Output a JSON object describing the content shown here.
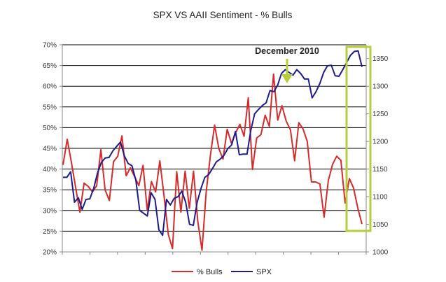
{
  "chart_data": {
    "type": "line",
    "title": "SPX VS AAII Sentiment - % Bulls",
    "xlabel": "",
    "ylabel_left": "",
    "ylabel_right": "",
    "y_left_ticks": [
      "20%",
      "25%",
      "30%",
      "35%",
      "40%",
      "45%",
      "50%",
      "55%",
      "60%",
      "65%",
      "70%"
    ],
    "y_left_range": [
      20,
      70
    ],
    "y_right_ticks": [
      "1000",
      "1050",
      "1100",
      "1150",
      "1200",
      "1250",
      "1300",
      "1350"
    ],
    "y_right_range": [
      1000,
      1375
    ],
    "grid": true,
    "legend_position": "bottom",
    "series": [
      {
        "name": "% Bulls",
        "axis": "left",
        "color": "#d62b2b",
        "values": [
          41.0,
          47.2,
          41.6,
          35.6,
          29.6,
          36.6,
          35.8,
          34.5,
          36.0,
          44.7,
          35.0,
          32.4,
          41.8,
          43.1,
          48.0,
          38.4,
          40.3,
          38.2,
          36.0,
          40.9,
          30.0,
          37.0,
          34.5,
          42.0,
          33.5,
          24.2,
          20.8,
          39.4,
          29.6,
          39.5,
          30.5,
          39.5,
          27.4,
          20.4,
          34.5,
          43.3,
          50.6,
          45.0,
          42.4,
          49.6,
          46.2,
          48.8,
          50.8,
          47.9,
          57.2,
          39.9,
          47.5,
          48.3,
          53.0,
          50.3,
          62.9,
          51.8,
          55.3,
          51.6,
          49.5,
          42.0,
          51.2,
          49.7,
          46.7,
          36.9,
          36.9,
          36.4,
          28.4,
          37.2,
          41.1,
          43.1,
          42.1,
          31.8,
          37.7,
          35.4,
          30.6,
          26.7
        ]
      },
      {
        "name": "SPX",
        "axis": "right",
        "color": "#1c1c8c",
        "values": [
          1135,
          1135,
          1145,
          1090,
          1098,
          1077,
          1095,
          1096,
          1115,
          1143,
          1162,
          1170,
          1171,
          1183,
          1191,
          1199,
          1174,
          1160,
          1156,
          1130,
          1075,
          1070,
          1065,
          1107,
          1095,
          1040,
          1030,
          1095,
          1085,
          1097,
          1100,
          1110,
          1090,
          1050,
          1048,
          1090,
          1115,
          1135,
          1140,
          1151,
          1163,
          1168,
          1175,
          1187,
          1194,
          1218,
          1176,
          1177,
          1177,
          1220,
          1250,
          1258,
          1265,
          1270,
          1292,
          1290,
          1302,
          1323,
          1330,
          1325,
          1320,
          1330,
          1323,
          1313,
          1313,
          1279,
          1290,
          1305,
          1325,
          1337,
          1338,
          1319,
          1318,
          1330,
          1343,
          1356,
          1363,
          1364,
          1335
        ]
      }
    ],
    "annotations": [
      {
        "text": "December 2010",
        "type": "arrow",
        "color": "#b5cf3a"
      },
      {
        "text": "",
        "type": "highlight-box",
        "color": "#b5cf3a"
      }
    ]
  }
}
